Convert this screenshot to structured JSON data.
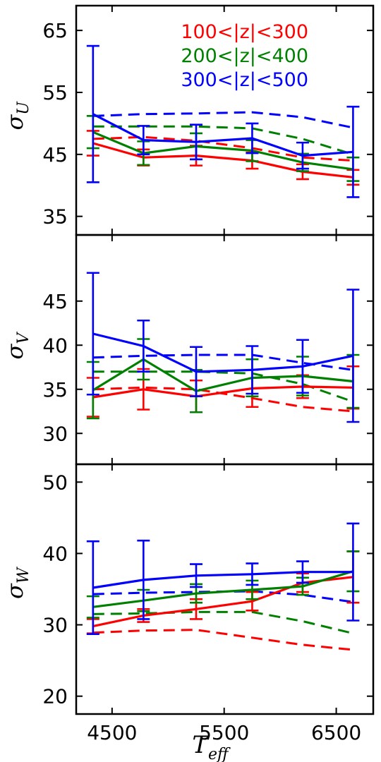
{
  "chart_data": {
    "type": "line",
    "x": [
      4330,
      4780,
      5250,
      5750,
      6200,
      6650
    ],
    "xlim": [
      4180,
      6830
    ],
    "xticks": [
      4500,
      5500,
      6500
    ],
    "xlabel_base": "T",
    "xlabel_sub": "eff",
    "legend": {
      "placement": "top-right of top panel",
      "entries": [
        {
          "label": "100<|z|<300",
          "color": "#ff0000"
        },
        {
          "label": "200<|z|<400",
          "color": "#008000"
        },
        {
          "label": "300<|z|<500",
          "color": "#0000ff"
        }
      ]
    },
    "panels": [
      {
        "ylabel_base": "σ",
        "ylabel_sub": "U",
        "ylim": [
          32,
          69
        ],
        "yticks": [
          35,
          45,
          55,
          65
        ],
        "series": [
          {
            "name": "100<|z|<300",
            "color": "#ff0000",
            "solid": [
              46.8,
              44.5,
              44.8,
              44.0,
              42.2,
              41.3
            ],
            "err": [
              2.0,
              1.3,
              1.6,
              1.3,
              1.2,
              1.2
            ],
            "dashed": [
              47.5,
              47.8,
              47.2,
              46.0,
              44.5,
              44.0
            ]
          },
          {
            "name": "200<|z|<400",
            "color": "#008000",
            "solid": [
              48.6,
              45.2,
              46.3,
              45.6,
              43.7,
              42.6
            ],
            "err": [
              2.6,
              1.9,
              2.1,
              1.7,
              1.4,
              1.9
            ],
            "dashed": [
              49.5,
              49.5,
              49.5,
              49.2,
              47.5,
              45.0
            ]
          },
          {
            "name": "300<|z|<500",
            "color": "#0000ff",
            "solid": [
              51.5,
              47.3,
              47.0,
              47.6,
              44.8,
              45.4
            ],
            "err": [
              11.0,
              2.3,
              2.8,
              2.4,
              2.1,
              7.3
            ],
            "dashed": [
              51.2,
              51.5,
              51.6,
              51.8,
              51.0,
              49.3
            ]
          }
        ]
      },
      {
        "ylabel_base": "σ",
        "ylabel_sub": "V",
        "ylim": [
          26.5,
          52.5
        ],
        "yticks": [
          30,
          35,
          40,
          45
        ],
        "series": [
          {
            "name": "100<|z|<300",
            "color": "#ff0000",
            "solid": [
              34.1,
              35.0,
              34.2,
              35.1,
              35.3,
              35.2
            ],
            "err": [
              2.2,
              2.3,
              1.8,
              2.1,
              1.3,
              2.4
            ],
            "dashed": [
              35.0,
              35.2,
              35.0,
              34.0,
              33.0,
              32.5
            ]
          },
          {
            "name": "200<|z|<400",
            "color": "#008000",
            "solid": [
              34.9,
              38.4,
              34.8,
              36.3,
              36.5,
              35.9
            ],
            "err": [
              3.2,
              2.3,
              2.4,
              2.1,
              2.2,
              3.0
            ],
            "dashed": [
              37.0,
              37.0,
              37.0,
              36.8,
              35.6,
              33.6
            ]
          },
          {
            "name": "300<|z|<500",
            "color": "#0000ff",
            "solid": [
              41.3,
              39.9,
              37.0,
              37.2,
              37.6,
              38.8
            ],
            "err": [
              6.9,
              2.9,
              2.8,
              2.7,
              3.0,
              7.5
            ],
            "dashed": [
              38.6,
              38.8,
              38.9,
              38.9,
              38.0,
              37.2
            ]
          }
        ]
      },
      {
        "ylabel_base": "σ",
        "ylabel_sub": "W",
        "ylim": [
          17.5,
          52.5
        ],
        "yticks": [
          20,
          30,
          40,
          50
        ],
        "series": [
          {
            "name": "100<|z|<300",
            "color": "#ff0000",
            "solid": [
              29.8,
              31.3,
              32.2,
              33.3,
              35.9,
              36.7
            ],
            "err": [
              1.0,
              0.9,
              1.4,
              1.3,
              1.3,
              3.6
            ],
            "dashed": [
              28.9,
              29.2,
              29.3,
              28.2,
              27.2,
              26.5
            ]
          },
          {
            "name": "200<|z|<400",
            "color": "#008000",
            "solid": [
              32.5,
              33.4,
              34.4,
              34.9,
              35.4,
              37.5
            ],
            "err": [
              1.5,
              1.5,
              1.3,
              1.3,
              1.2,
              2.8
            ],
            "dashed": [
              31.5,
              31.6,
              31.8,
              31.8,
              30.5,
              28.8
            ]
          },
          {
            "name": "300<|z|<500",
            "color": "#0000ff",
            "solid": [
              35.2,
              36.3,
              36.9,
              37.1,
              37.4,
              37.4
            ],
            "err": [
              6.5,
              5.5,
              1.6,
              1.5,
              1.5,
              6.8
            ],
            "dashed": [
              34.3,
              34.5,
              34.6,
              34.7,
              34.2,
              33.2
            ]
          }
        ]
      }
    ]
  }
}
